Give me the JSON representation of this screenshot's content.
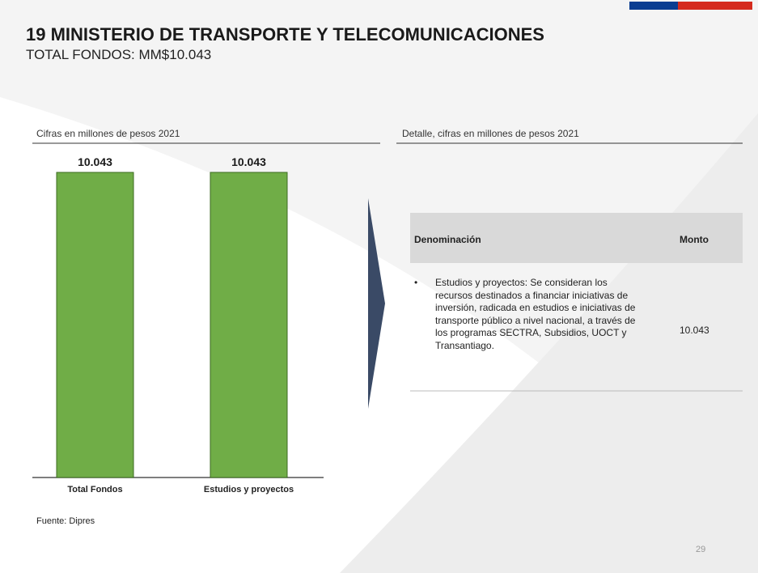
{
  "header": {
    "title": "19 MINISTERIO DE TRANSPORTE Y TELECOMUNICACIONES",
    "subtitle": "TOTAL FONDOS: MM$10.043"
  },
  "chart_data": {
    "type": "bar",
    "subtitle": "Cifras en millones de pesos 2021",
    "categories": [
      "Total Fondos",
      "Estudios y proyectos"
    ],
    "values": [
      10043,
      10043
    ],
    "value_labels": [
      "10.043",
      "10.043"
    ],
    "color": "#70ad47"
  },
  "detail": {
    "caption": "Detalle, cifras en millones de pesos 2021",
    "table": {
      "columns": [
        "Denominación",
        "Monto"
      ],
      "rows": [
        [
          "Estudios y proyectos: Se consideran los recursos destinados a financiar iniciativas de inversión, radicada en estudios e iniciativas de transporte público a nivel nacional, a través de los programas SECTRA, Subsidios, UOCT y Transantiago.",
          "10.043"
        ]
      ]
    }
  },
  "source": "Fuente: Dipres",
  "page_number": "29"
}
